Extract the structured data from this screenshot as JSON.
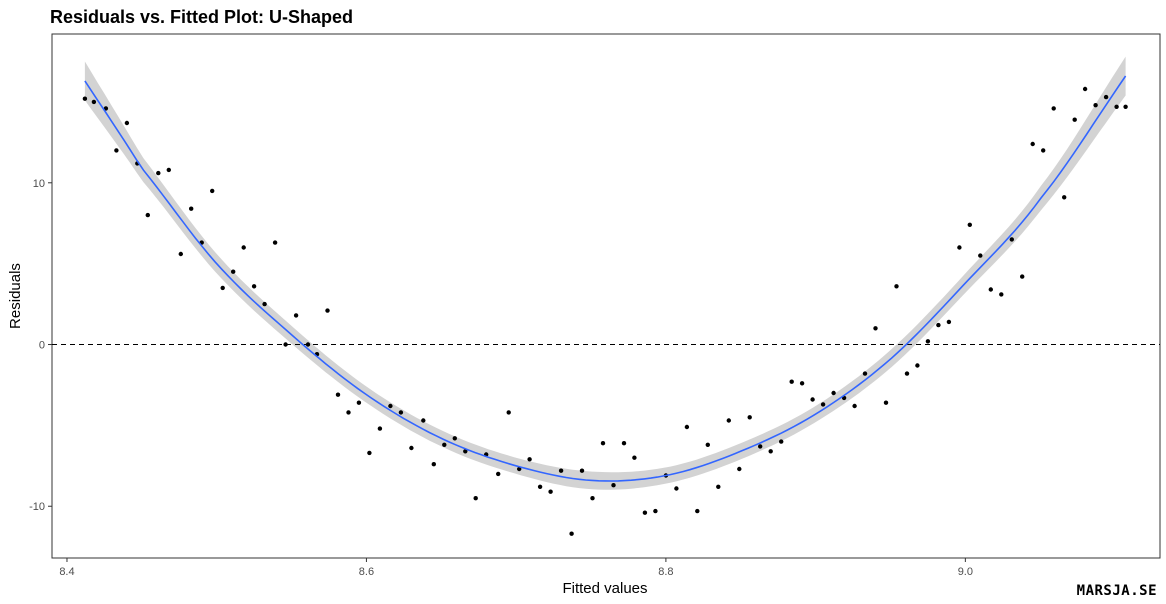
{
  "chart_data": {
    "type": "scatter",
    "title": "Residuals vs. Fitted Plot: U-Shaped",
    "xlabel": "Fitted values",
    "ylabel": "Residuals",
    "xlim": [
      8.39,
      9.13
    ],
    "ylim": [
      -13.2,
      19.2
    ],
    "x_ticks": [
      8.4,
      8.6,
      8.8,
      9.0
    ],
    "x_tick_labels": [
      "8.4",
      "8.6",
      "8.8",
      "9.0"
    ],
    "y_ticks": [
      -10,
      0,
      10
    ],
    "y_tick_labels": [
      "-10",
      "0",
      "10"
    ],
    "reference_line": {
      "y": 0,
      "style": "dashed"
    },
    "grid": false,
    "smooth": {
      "method": "loess",
      "color": "#3366FF",
      "band_color": "#d3d3d3",
      "x": [
        8.412,
        8.45,
        8.5,
        8.55,
        8.6,
        8.65,
        8.7,
        8.75,
        8.8,
        8.85,
        8.9,
        8.95,
        9.0,
        9.05,
        9.107
      ],
      "y": [
        16.3,
        10.9,
        5.0,
        0.6,
        -3.1,
        -5.8,
        -7.5,
        -8.4,
        -8.1,
        -6.6,
        -4.3,
        -0.9,
        3.8,
        9.0,
        16.6
      ],
      "se": [
        1.2,
        0.75,
        0.6,
        0.55,
        0.5,
        0.5,
        0.5,
        0.55,
        0.5,
        0.5,
        0.5,
        0.55,
        0.6,
        0.75,
        1.2
      ]
    },
    "points": {
      "color": "#000000",
      "x": [
        8.412,
        8.418,
        8.426,
        8.433,
        8.44,
        8.447,
        8.454,
        8.461,
        8.468,
        8.476,
        8.483,
        8.49,
        8.497,
        8.504,
        8.511,
        8.518,
        8.525,
        8.532,
        8.539,
        8.546,
        8.553,
        8.561,
        8.567,
        8.574,
        8.581,
        8.588,
        8.595,
        8.602,
        8.609,
        8.616,
        8.623,
        8.63,
        8.638,
        8.645,
        8.652,
        8.659,
        8.666,
        8.673,
        8.68,
        8.688,
        8.695,
        8.702,
        8.709,
        8.716,
        8.723,
        8.73,
        8.737,
        8.744,
        8.751,
        8.758,
        8.765,
        8.772,
        8.779,
        8.786,
        8.793,
        8.8,
        8.807,
        8.814,
        8.821,
        8.828,
        8.835,
        8.842,
        8.849,
        8.856,
        8.863,
        8.87,
        8.877,
        8.884,
        8.891,
        8.898,
        8.905,
        8.912,
        8.919,
        8.926,
        8.933,
        8.94,
        8.947,
        8.954,
        8.961,
        8.968,
        8.975,
        8.982,
        8.989,
        8.996,
        9.003,
        9.01,
        9.017,
        9.024,
        9.031,
        9.038,
        9.045,
        9.052,
        9.059,
        9.066,
        9.073,
        9.08,
        9.087,
        9.094,
        9.101,
        9.107
      ],
      "y": [
        15.2,
        15.0,
        14.6,
        12.0,
        13.7,
        11.2,
        8.0,
        10.6,
        10.8,
        5.6,
        8.4,
        6.3,
        9.5,
        3.5,
        4.5,
        6.0,
        3.6,
        2.5,
        6.3,
        0.0,
        1.8,
        0.0,
        -0.6,
        2.1,
        -3.1,
        -4.2,
        -3.6,
        -6.7,
        -5.2,
        -3.8,
        -4.2,
        -6.4,
        -4.7,
        -7.4,
        -6.2,
        -5.8,
        -6.6,
        -9.5,
        -6.8,
        -8.0,
        -4.2,
        -7.7,
        -7.1,
        -8.8,
        -9.1,
        -7.8,
        -11.7,
        -7.8,
        -9.5,
        -6.1,
        -8.7,
        -6.1,
        -7.0,
        -10.4,
        -10.3,
        -8.1,
        -8.9,
        -5.1,
        -10.3,
        -6.2,
        -8.8,
        -4.7,
        -7.7,
        -4.5,
        -6.3,
        -6.6,
        -6.0,
        -2.3,
        -2.4,
        -3.4,
        -3.7,
        -3.0,
        -3.3,
        -3.8,
        -1.8,
        1.0,
        -3.6,
        3.6,
        -1.8,
        -1.3,
        0.2,
        1.2,
        1.4,
        6.0,
        7.4,
        5.5,
        3.4,
        3.1,
        6.5,
        4.2,
        12.4,
        12.0,
        14.6,
        9.1,
        13.9,
        15.8,
        14.8,
        15.3,
        14.7,
        14.7
      ]
    }
  },
  "watermark": "MARSJA.SE"
}
